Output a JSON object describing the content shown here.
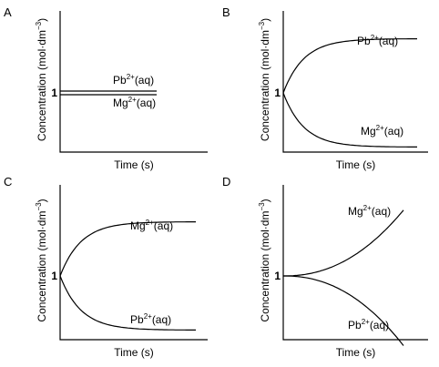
{
  "chart_data": [
    {
      "type": "line",
      "panel": "A",
      "xlabel": "Time (s)",
      "ylabel": "Concentration (mol·dm",
      "ylabel_sup": "−3",
      "ylabel_close": ")",
      "start_label": "1",
      "series": [
        {
          "name": "Pb",
          "charge": "2+",
          "state": "(aq)",
          "shape": "flat",
          "start": 1,
          "end": 1
        },
        {
          "name": "Mg",
          "charge": "2+",
          "state": "(aq)",
          "shape": "flat",
          "start": 1,
          "end": 1
        }
      ]
    },
    {
      "type": "line",
      "panel": "B",
      "xlabel": "Time (s)",
      "ylabel": "Concentration (mol·dm",
      "ylabel_sup": "−3",
      "ylabel_close": ")",
      "start_label": "1",
      "series": [
        {
          "name": "Pb",
          "charge": "2+",
          "state": "(aq)",
          "shape": "rise-saturate",
          "start": 1,
          "end": 1.7
        },
        {
          "name": "Mg",
          "charge": "2+",
          "state": "(aq)",
          "shape": "fall-saturate",
          "start": 1,
          "end": 0.3
        }
      ]
    },
    {
      "type": "line",
      "panel": "C",
      "xlabel": "Time (s)",
      "ylabel": "Concentration (mol·dm",
      "ylabel_sup": "−3",
      "ylabel_close": ")",
      "start_label": "1",
      "series": [
        {
          "name": "Mg",
          "charge": "2+",
          "state": "(aq)",
          "shape": "rise-saturate",
          "start": 1,
          "end": 1.7
        },
        {
          "name": "Pb",
          "charge": "2+",
          "state": "(aq)",
          "shape": "fall-saturate",
          "start": 1,
          "end": 0.3
        }
      ]
    },
    {
      "type": "line",
      "panel": "D",
      "xlabel": "Time (s)",
      "ylabel": "Concentration (mol·dm",
      "ylabel_sup": "−3",
      "ylabel_close": ")",
      "start_label": "1",
      "series": [
        {
          "name": "Mg",
          "charge": "2+",
          "state": "(aq)",
          "shape": "rise-accelerate",
          "start": 1,
          "end": 1.85
        },
        {
          "name": "Pb",
          "charge": "2+",
          "state": "(aq)",
          "shape": "fall-accelerate",
          "start": 1,
          "end": 0.1
        }
      ]
    }
  ]
}
